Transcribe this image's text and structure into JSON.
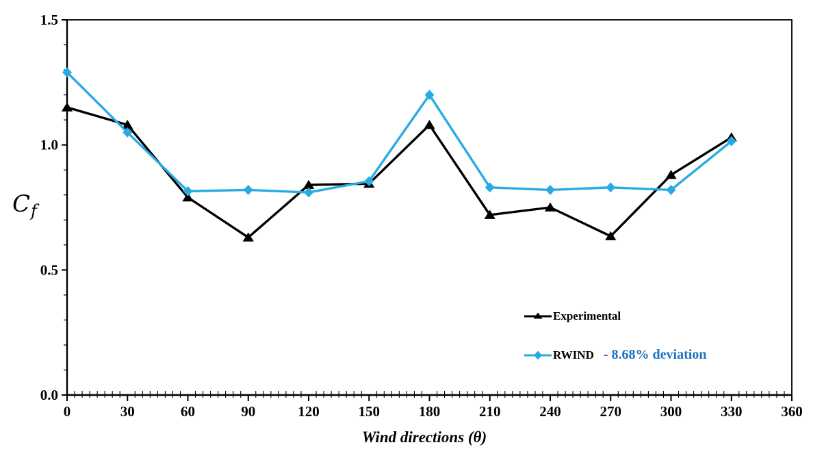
{
  "chart_data": {
    "type": "line",
    "title": "",
    "xlabel": "Wind directions (θ)",
    "ylabel": "Cf",
    "ylabel_main": "C",
    "ylabel_sub": "f",
    "x": [
      0,
      30,
      60,
      90,
      120,
      150,
      180,
      210,
      240,
      270,
      300,
      330
    ],
    "xlim": [
      0,
      360
    ],
    "ylim": [
      0,
      1.5
    ],
    "x_ticks": [
      0,
      30,
      60,
      90,
      120,
      150,
      180,
      210,
      240,
      270,
      300,
      330,
      360
    ],
    "y_ticks": [
      {
        "value": 0,
        "label": "0.0"
      },
      {
        "value": 0.5,
        "label": "0.5"
      },
      {
        "value": 1,
        "label": "1.0"
      },
      {
        "value": 1.5,
        "label": "1.5"
      }
    ],
    "x_minor_intervals_per_major": 8,
    "y_minor_step": 0.1,
    "grid": false,
    "legend_position": "inside-right",
    "series": [
      {
        "name": "Experimental",
        "marker": "triangle",
        "color": "#000000",
        "values": [
          1.15,
          1.08,
          0.79,
          0.63,
          0.84,
          0.845,
          1.08,
          0.72,
          0.75,
          0.635,
          0.88,
          1.03
        ]
      },
      {
        "name": "RWIND",
        "marker": "diamond",
        "color": "#29ABE2",
        "values": [
          1.29,
          1.05,
          0.815,
          0.82,
          0.81,
          0.855,
          1.2,
          0.83,
          0.82,
          0.83,
          0.82,
          1.015
        ],
        "annotation": "- 8.68% deviation",
        "annotation_color": "#1C72C2"
      }
    ],
    "legend": {
      "entries": [
        {
          "label": "Experimental",
          "color": "#000000",
          "marker": "triangle"
        },
        {
          "label": "RWIND",
          "color": "#29ABE2",
          "marker": "diamond",
          "suffix": "- 8.68% deviation",
          "suffix_color": "#1C72C2"
        }
      ]
    },
    "axis_color": "#000000"
  }
}
